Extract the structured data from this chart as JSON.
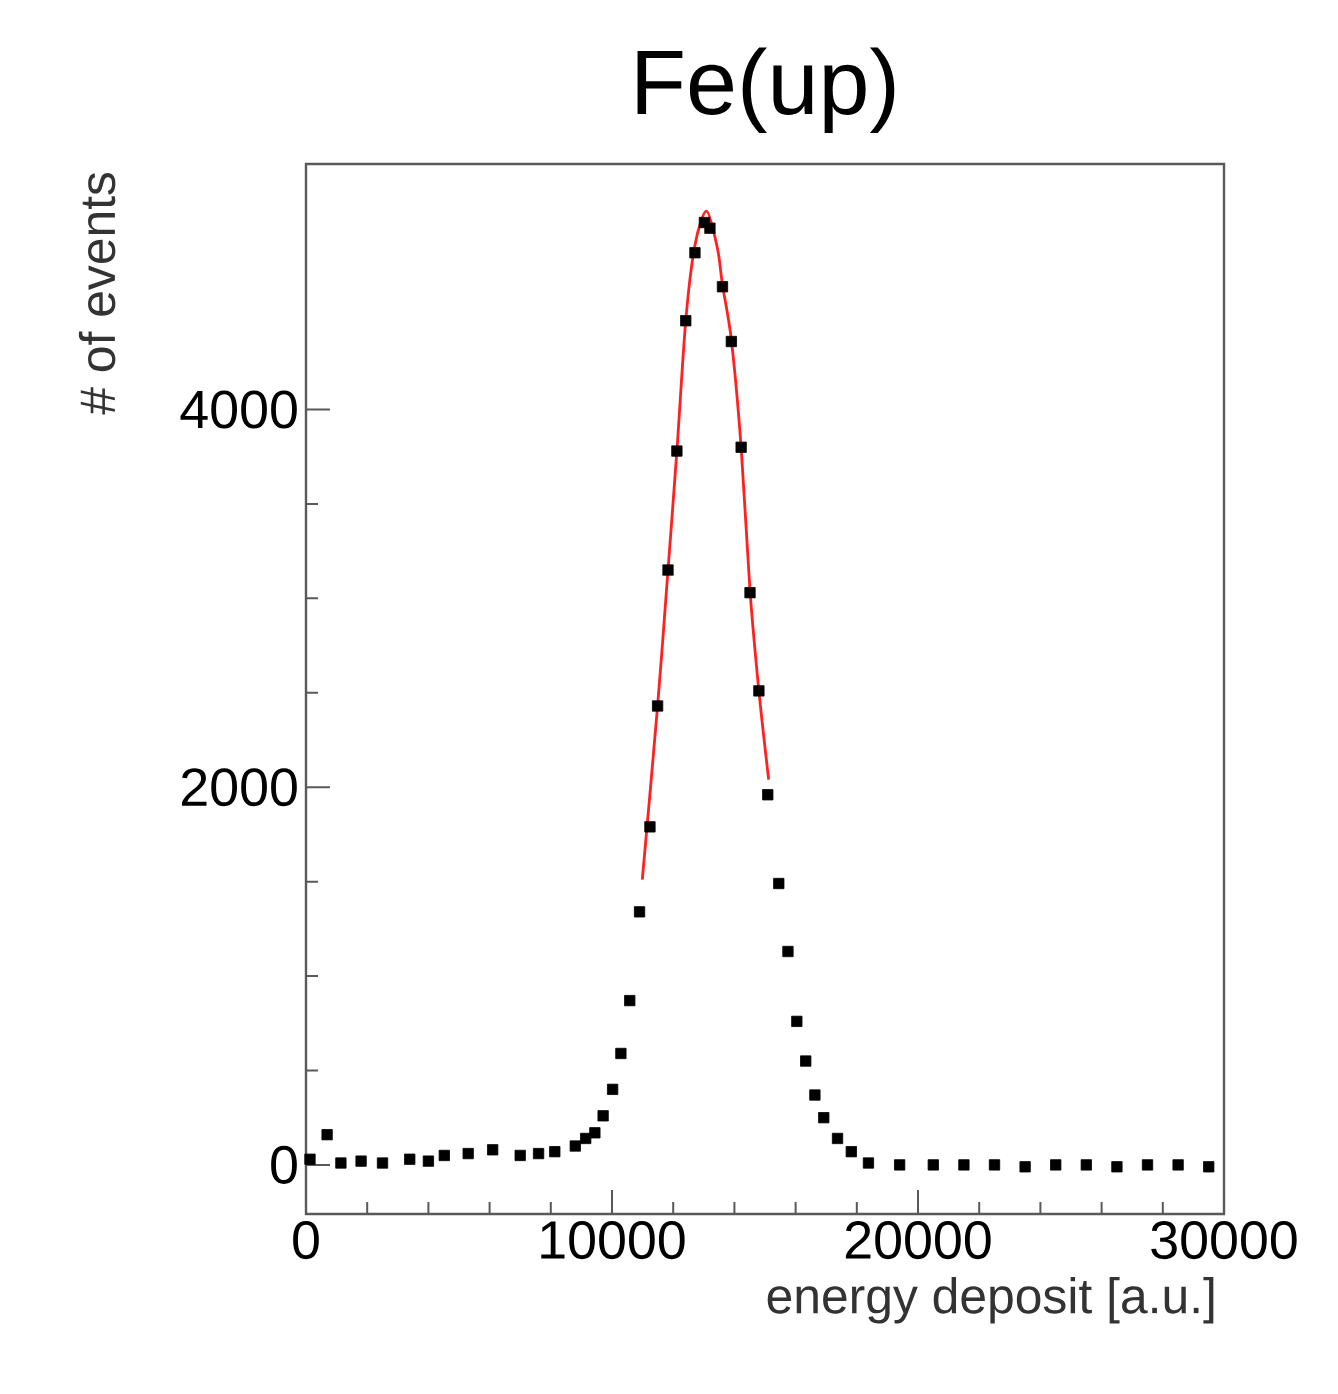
{
  "chart_data": {
    "type": "scatter",
    "title": "Fe(up)",
    "xlabel": "energy deposit [a.u.]",
    "ylabel": "# of events",
    "xlim": [
      0,
      30000
    ],
    "ylim": [
      -260,
      5300
    ],
    "xticks": [
      0,
      10000,
      20000,
      30000
    ],
    "yticks": [
      0,
      2000,
      4000
    ],
    "marker": "square",
    "series": [
      {
        "color": "#000000",
        "x": [
          130,
          690,
          1140,
          1800,
          2500,
          3390,
          4000,
          4520,
          5300,
          6100,
          7000,
          7600,
          8130,
          8800,
          9140,
          9440,
          9710,
          10020,
          10290,
          10580,
          10900,
          11240,
          11490,
          11830,
          12120,
          12410,
          12710,
          13020,
          13200,
          13610,
          13900,
          14220,
          14510,
          14800,
          15090,
          15450,
          15750,
          16040,
          16330,
          16630,
          16920,
          17370,
          17820,
          18380,
          19400,
          20500,
          21500,
          22500,
          23500,
          24500,
          25500,
          26500,
          27500,
          28500,
          29500
        ],
        "values": [
          30,
          160,
          10,
          20,
          10,
          30,
          20,
          50,
          60,
          80,
          50,
          60,
          70,
          100,
          140,
          170,
          260,
          400,
          590,
          870,
          1340,
          1790,
          2430,
          3150,
          3780,
          4470,
          4830,
          4990,
          4960,
          4650,
          4360,
          3800,
          3030,
          2510,
          1960,
          1490,
          1130,
          760,
          550,
          370,
          250,
          140,
          70,
          10,
          0,
          0,
          0,
          0,
          -10,
          0,
          0,
          -10,
          0,
          0,
          -10
        ]
      },
      {
        "type": "line",
        "color": "#ff2020",
        "line_style": "solid",
        "marker": "none",
        "x": [
          10990,
          11490,
          11830,
          12120,
          12410,
          12710,
          13090,
          13450,
          13610,
          13900,
          14220,
          14510,
          14800,
          15120
        ],
        "values": [
          1510,
          2430,
          3150,
          3780,
          4470,
          4870,
          5050,
          4850,
          4660,
          4370,
          3800,
          3040,
          2510,
          2040
        ]
      }
    ]
  }
}
